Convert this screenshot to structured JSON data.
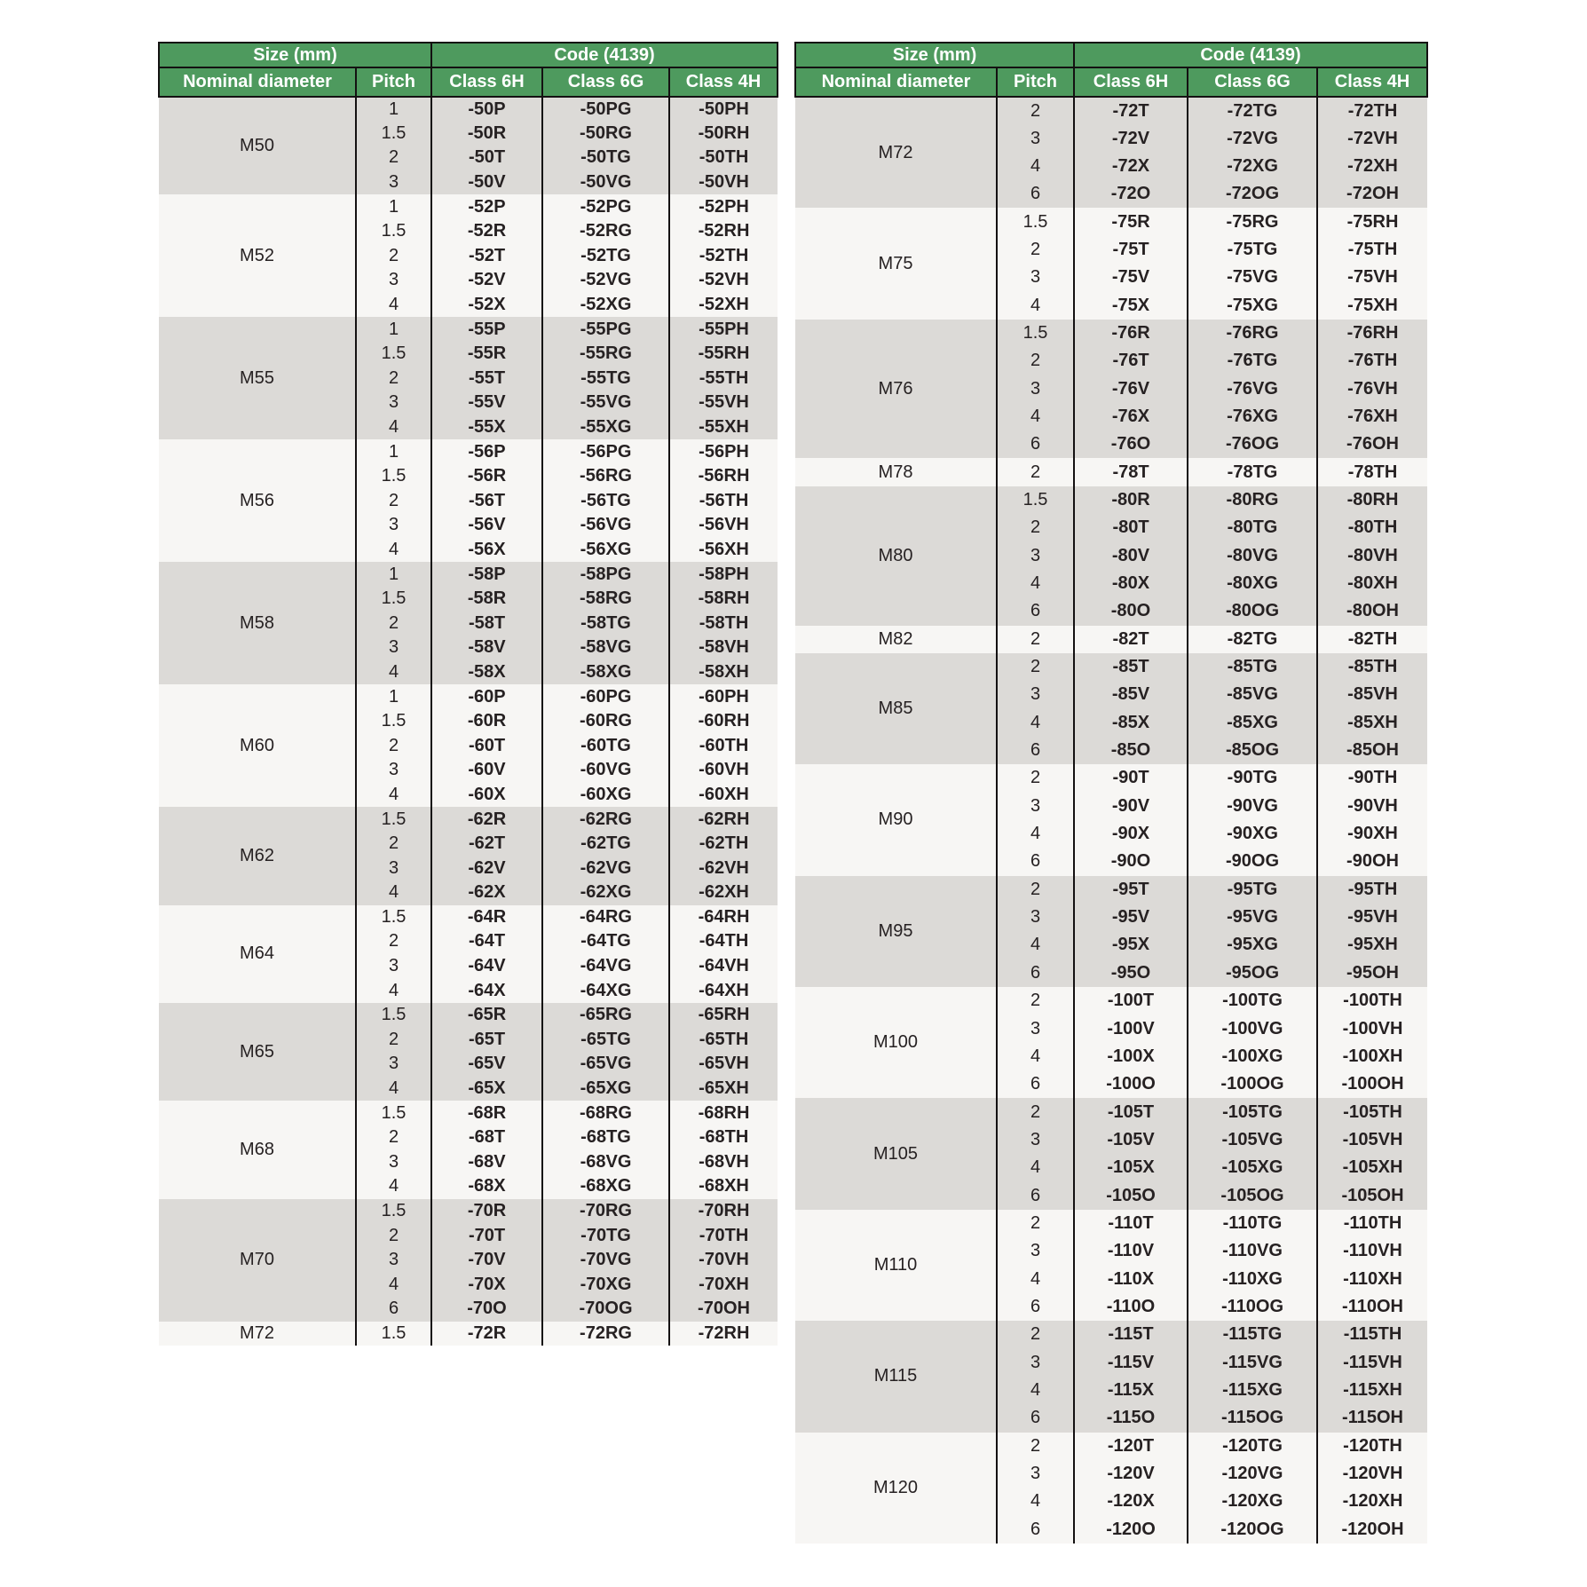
{
  "header": {
    "size_group": "Size (mm)",
    "code_group": "Code (4139)",
    "nominal_diameter": "Nominal diameter",
    "pitch": "Pitch",
    "class_6h": "Class 6H",
    "class_6g": "Class 6G",
    "class_4h": "Class 4H"
  },
  "colors": {
    "header_green": "#4e9a5e",
    "header_text": "#ffffff",
    "row_gray": "#dcdad7",
    "row_white": "#f7f6f4",
    "border_black": "#141112",
    "body_text": "#262122"
  },
  "tables": [
    {
      "id": "left",
      "groups": [
        {
          "diameter": "M50",
          "rows": [
            {
              "pitch": "1",
              "c6h": "-50P",
              "c6g": "-50PG",
              "c4h": "-50PH"
            },
            {
              "pitch": "1.5",
              "c6h": "-50R",
              "c6g": "-50RG",
              "c4h": "-50RH"
            },
            {
              "pitch": "2",
              "c6h": "-50T",
              "c6g": "-50TG",
              "c4h": "-50TH"
            },
            {
              "pitch": "3",
              "c6h": "-50V",
              "c6g": "-50VG",
              "c4h": "-50VH"
            }
          ]
        },
        {
          "diameter": "M52",
          "rows": [
            {
              "pitch": "1",
              "c6h": "-52P",
              "c6g": "-52PG",
              "c4h": "-52PH"
            },
            {
              "pitch": "1.5",
              "c6h": "-52R",
              "c6g": "-52RG",
              "c4h": "-52RH"
            },
            {
              "pitch": "2",
              "c6h": "-52T",
              "c6g": "-52TG",
              "c4h": "-52TH"
            },
            {
              "pitch": "3",
              "c6h": "-52V",
              "c6g": "-52VG",
              "c4h": "-52VH"
            },
            {
              "pitch": "4",
              "c6h": "-52X",
              "c6g": "-52XG",
              "c4h": "-52XH"
            }
          ]
        },
        {
          "diameter": "M55",
          "rows": [
            {
              "pitch": "1",
              "c6h": "-55P",
              "c6g": "-55PG",
              "c4h": "-55PH"
            },
            {
              "pitch": "1.5",
              "c6h": "-55R",
              "c6g": "-55RG",
              "c4h": "-55RH"
            },
            {
              "pitch": "2",
              "c6h": "-55T",
              "c6g": "-55TG",
              "c4h": "-55TH"
            },
            {
              "pitch": "3",
              "c6h": "-55V",
              "c6g": "-55VG",
              "c4h": "-55VH"
            },
            {
              "pitch": "4",
              "c6h": "-55X",
              "c6g": "-55XG",
              "c4h": "-55XH"
            }
          ]
        },
        {
          "diameter": "M56",
          "rows": [
            {
              "pitch": "1",
              "c6h": "-56P",
              "c6g": "-56PG",
              "c4h": "-56PH"
            },
            {
              "pitch": "1.5",
              "c6h": "-56R",
              "c6g": "-56RG",
              "c4h": "-56RH"
            },
            {
              "pitch": "2",
              "c6h": "-56T",
              "c6g": "-56TG",
              "c4h": "-56TH"
            },
            {
              "pitch": "3",
              "c6h": "-56V",
              "c6g": "-56VG",
              "c4h": "-56VH"
            },
            {
              "pitch": "4",
              "c6h": "-56X",
              "c6g": "-56XG",
              "c4h": "-56XH"
            }
          ]
        },
        {
          "diameter": "M58",
          "rows": [
            {
              "pitch": "1",
              "c6h": "-58P",
              "c6g": "-58PG",
              "c4h": "-58PH"
            },
            {
              "pitch": "1.5",
              "c6h": "-58R",
              "c6g": "-58RG",
              "c4h": "-58RH"
            },
            {
              "pitch": "2",
              "c6h": "-58T",
              "c6g": "-58TG",
              "c4h": "-58TH"
            },
            {
              "pitch": "3",
              "c6h": "-58V",
              "c6g": "-58VG",
              "c4h": "-58VH"
            },
            {
              "pitch": "4",
              "c6h": "-58X",
              "c6g": "-58XG",
              "c4h": "-58XH"
            }
          ]
        },
        {
          "diameter": "M60",
          "rows": [
            {
              "pitch": "1",
              "c6h": "-60P",
              "c6g": "-60PG",
              "c4h": "-60PH"
            },
            {
              "pitch": "1.5",
              "c6h": "-60R",
              "c6g": "-60RG",
              "c4h": "-60RH"
            },
            {
              "pitch": "2",
              "c6h": "-60T",
              "c6g": "-60TG",
              "c4h": "-60TH"
            },
            {
              "pitch": "3",
              "c6h": "-60V",
              "c6g": "-60VG",
              "c4h": "-60VH"
            },
            {
              "pitch": "4",
              "c6h": "-60X",
              "c6g": "-60XG",
              "c4h": "-60XH"
            }
          ]
        },
        {
          "diameter": "M62",
          "rows": [
            {
              "pitch": "1.5",
              "c6h": "-62R",
              "c6g": "-62RG",
              "c4h": "-62RH"
            },
            {
              "pitch": "2",
              "c6h": "-62T",
              "c6g": "-62TG",
              "c4h": "-62TH"
            },
            {
              "pitch": "3",
              "c6h": "-62V",
              "c6g": "-62VG",
              "c4h": "-62VH"
            },
            {
              "pitch": "4",
              "c6h": "-62X",
              "c6g": "-62XG",
              "c4h": "-62XH"
            }
          ]
        },
        {
          "diameter": "M64",
          "rows": [
            {
              "pitch": "1.5",
              "c6h": "-64R",
              "c6g": "-64RG",
              "c4h": "-64RH"
            },
            {
              "pitch": "2",
              "c6h": "-64T",
              "c6g": "-64TG",
              "c4h": "-64TH"
            },
            {
              "pitch": "3",
              "c6h": "-64V",
              "c6g": "-64VG",
              "c4h": "-64VH"
            },
            {
              "pitch": "4",
              "c6h": "-64X",
              "c6g": "-64XG",
              "c4h": "-64XH"
            }
          ]
        },
        {
          "diameter": "M65",
          "rows": [
            {
              "pitch": "1.5",
              "c6h": "-65R",
              "c6g": "-65RG",
              "c4h": "-65RH"
            },
            {
              "pitch": "2",
              "c6h": "-65T",
              "c6g": "-65TG",
              "c4h": "-65TH"
            },
            {
              "pitch": "3",
              "c6h": "-65V",
              "c6g": "-65VG",
              "c4h": "-65VH"
            },
            {
              "pitch": "4",
              "c6h": "-65X",
              "c6g": "-65XG",
              "c4h": "-65XH"
            }
          ]
        },
        {
          "diameter": "M68",
          "rows": [
            {
              "pitch": "1.5",
              "c6h": "-68R",
              "c6g": "-68RG",
              "c4h": "-68RH"
            },
            {
              "pitch": "2",
              "c6h": "-68T",
              "c6g": "-68TG",
              "c4h": "-68TH"
            },
            {
              "pitch": "3",
              "c6h": "-68V",
              "c6g": "-68VG",
              "c4h": "-68VH"
            },
            {
              "pitch": "4",
              "c6h": "-68X",
              "c6g": "-68XG",
              "c4h": "-68XH"
            }
          ]
        },
        {
          "diameter": "M70",
          "rows": [
            {
              "pitch": "1.5",
              "c6h": "-70R",
              "c6g": "-70RG",
              "c4h": "-70RH"
            },
            {
              "pitch": "2",
              "c6h": "-70T",
              "c6g": "-70TG",
              "c4h": "-70TH"
            },
            {
              "pitch": "3",
              "c6h": "-70V",
              "c6g": "-70VG",
              "c4h": "-70VH"
            },
            {
              "pitch": "4",
              "c6h": "-70X",
              "c6g": "-70XG",
              "c4h": "-70XH"
            },
            {
              "pitch": "6",
              "c6h": "-70O",
              "c6g": "-70OG",
              "c4h": "-70OH"
            }
          ]
        },
        {
          "diameter": "M72",
          "rows": [
            {
              "pitch": "1.5",
              "c6h": "-72R",
              "c6g": "-72RG",
              "c4h": "-72RH"
            }
          ]
        }
      ]
    },
    {
      "id": "right",
      "groups": [
        {
          "diameter": "M72",
          "rows": [
            {
              "pitch": "2",
              "c6h": "-72T",
              "c6g": "-72TG",
              "c4h": "-72TH"
            },
            {
              "pitch": "3",
              "c6h": "-72V",
              "c6g": "-72VG",
              "c4h": "-72VH"
            },
            {
              "pitch": "4",
              "c6h": "-72X",
              "c6g": "-72XG",
              "c4h": "-72XH"
            },
            {
              "pitch": "6",
              "c6h": "-72O",
              "c6g": "-72OG",
              "c4h": "-72OH"
            }
          ]
        },
        {
          "diameter": "M75",
          "rows": [
            {
              "pitch": "1.5",
              "c6h": "-75R",
              "c6g": "-75RG",
              "c4h": "-75RH"
            },
            {
              "pitch": "2",
              "c6h": "-75T",
              "c6g": "-75TG",
              "c4h": "-75TH"
            },
            {
              "pitch": "3",
              "c6h": "-75V",
              "c6g": "-75VG",
              "c4h": "-75VH"
            },
            {
              "pitch": "4",
              "c6h": "-75X",
              "c6g": "-75XG",
              "c4h": "-75XH"
            }
          ]
        },
        {
          "diameter": "M76",
          "rows": [
            {
              "pitch": "1.5",
              "c6h": "-76R",
              "c6g": "-76RG",
              "c4h": "-76RH"
            },
            {
              "pitch": "2",
              "c6h": "-76T",
              "c6g": "-76TG",
              "c4h": "-76TH"
            },
            {
              "pitch": "3",
              "c6h": "-76V",
              "c6g": "-76VG",
              "c4h": "-76VH"
            },
            {
              "pitch": "4",
              "c6h": "-76X",
              "c6g": "-76XG",
              "c4h": "-76XH"
            },
            {
              "pitch": "6",
              "c6h": "-76O",
              "c6g": "-76OG",
              "c4h": "-76OH"
            }
          ]
        },
        {
          "diameter": "M78",
          "rows": [
            {
              "pitch": "2",
              "c6h": "-78T",
              "c6g": "-78TG",
              "c4h": "-78TH"
            }
          ]
        },
        {
          "diameter": "M80",
          "rows": [
            {
              "pitch": "1.5",
              "c6h": "-80R",
              "c6g": "-80RG",
              "c4h": "-80RH"
            },
            {
              "pitch": "2",
              "c6h": "-80T",
              "c6g": "-80TG",
              "c4h": "-80TH"
            },
            {
              "pitch": "3",
              "c6h": "-80V",
              "c6g": "-80VG",
              "c4h": "-80VH"
            },
            {
              "pitch": "4",
              "c6h": "-80X",
              "c6g": "-80XG",
              "c4h": "-80XH"
            },
            {
              "pitch": "6",
              "c6h": "-80O",
              "c6g": "-80OG",
              "c4h": "-80OH"
            }
          ]
        },
        {
          "diameter": "M82",
          "rows": [
            {
              "pitch": "2",
              "c6h": "-82T",
              "c6g": "-82TG",
              "c4h": "-82TH"
            }
          ]
        },
        {
          "diameter": "M85",
          "rows": [
            {
              "pitch": "2",
              "c6h": "-85T",
              "c6g": "-85TG",
              "c4h": "-85TH"
            },
            {
              "pitch": "3",
              "c6h": "-85V",
              "c6g": "-85VG",
              "c4h": "-85VH"
            },
            {
              "pitch": "4",
              "c6h": "-85X",
              "c6g": "-85XG",
              "c4h": "-85XH"
            },
            {
              "pitch": "6",
              "c6h": "-85O",
              "c6g": "-85OG",
              "c4h": "-85OH"
            }
          ]
        },
        {
          "diameter": "M90",
          "rows": [
            {
              "pitch": "2",
              "c6h": "-90T",
              "c6g": "-90TG",
              "c4h": "-90TH"
            },
            {
              "pitch": "3",
              "c6h": "-90V",
              "c6g": "-90VG",
              "c4h": "-90VH"
            },
            {
              "pitch": "4",
              "c6h": "-90X",
              "c6g": "-90XG",
              "c4h": "-90XH"
            },
            {
              "pitch": "6",
              "c6h": "-90O",
              "c6g": "-90OG",
              "c4h": "-90OH"
            }
          ]
        },
        {
          "diameter": "M95",
          "rows": [
            {
              "pitch": "2",
              "c6h": "-95T",
              "c6g": "-95TG",
              "c4h": "-95TH"
            },
            {
              "pitch": "3",
              "c6h": "-95V",
              "c6g": "-95VG",
              "c4h": "-95VH"
            },
            {
              "pitch": "4",
              "c6h": "-95X",
              "c6g": "-95XG",
              "c4h": "-95XH"
            },
            {
              "pitch": "6",
              "c6h": "-95O",
              "c6g": "-95OG",
              "c4h": "-95OH"
            }
          ]
        },
        {
          "diameter": "M100",
          "rows": [
            {
              "pitch": "2",
              "c6h": "-100T",
              "c6g": "-100TG",
              "c4h": "-100TH"
            },
            {
              "pitch": "3",
              "c6h": "-100V",
              "c6g": "-100VG",
              "c4h": "-100VH"
            },
            {
              "pitch": "4",
              "c6h": "-100X",
              "c6g": "-100XG",
              "c4h": "-100XH"
            },
            {
              "pitch": "6",
              "c6h": "-100O",
              "c6g": "-100OG",
              "c4h": "-100OH"
            }
          ]
        },
        {
          "diameter": "M105",
          "rows": [
            {
              "pitch": "2",
              "c6h": "-105T",
              "c6g": "-105TG",
              "c4h": "-105TH"
            },
            {
              "pitch": "3",
              "c6h": "-105V",
              "c6g": "-105VG",
              "c4h": "-105VH"
            },
            {
              "pitch": "4",
              "c6h": "-105X",
              "c6g": "-105XG",
              "c4h": "-105XH"
            },
            {
              "pitch": "6",
              "c6h": "-105O",
              "c6g": "-105OG",
              "c4h": "-105OH"
            }
          ]
        },
        {
          "diameter": "M110",
          "rows": [
            {
              "pitch": "2",
              "c6h": "-110T",
              "c6g": "-110TG",
              "c4h": "-110TH"
            },
            {
              "pitch": "3",
              "c6h": "-110V",
              "c6g": "-110VG",
              "c4h": "-110VH"
            },
            {
              "pitch": "4",
              "c6h": "-110X",
              "c6g": "-110XG",
              "c4h": "-110XH"
            },
            {
              "pitch": "6",
              "c6h": "-110O",
              "c6g": "-110OG",
              "c4h": "-110OH"
            }
          ]
        },
        {
          "diameter": "M115",
          "rows": [
            {
              "pitch": "2",
              "c6h": "-115T",
              "c6g": "-115TG",
              "c4h": "-115TH"
            },
            {
              "pitch": "3",
              "c6h": "-115V",
              "c6g": "-115VG",
              "c4h": "-115VH"
            },
            {
              "pitch": "4",
              "c6h": "-115X",
              "c6g": "-115XG",
              "c4h": "-115XH"
            },
            {
              "pitch": "6",
              "c6h": "-115O",
              "c6g": "-115OG",
              "c4h": "-115OH"
            }
          ]
        },
        {
          "diameter": "M120",
          "rows": [
            {
              "pitch": "2",
              "c6h": "-120T",
              "c6g": "-120TG",
              "c4h": "-120TH"
            },
            {
              "pitch": "3",
              "c6h": "-120V",
              "c6g": "-120VG",
              "c4h": "-120VH"
            },
            {
              "pitch": "4",
              "c6h": "-120X",
              "c6g": "-120XG",
              "c4h": "-120XH"
            },
            {
              "pitch": "6",
              "c6h": "-120O",
              "c6g": "-120OG",
              "c4h": "-120OH"
            }
          ]
        }
      ]
    }
  ]
}
